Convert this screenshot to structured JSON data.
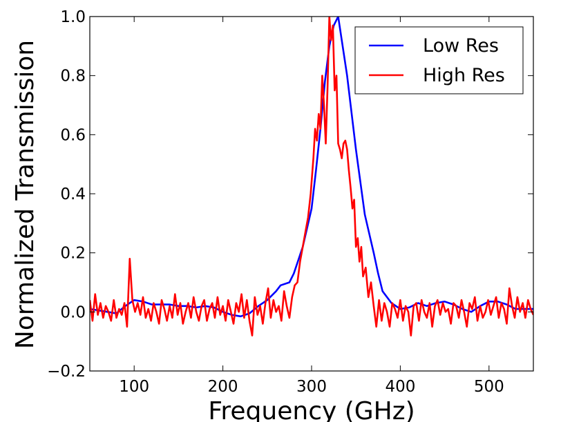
{
  "chart_data": {
    "type": "line",
    "title": "",
    "xlabel": "Frequency (GHz)",
    "ylabel": "Normalized Transmission",
    "xlim": [
      50,
      550
    ],
    "ylim": [
      -0.2,
      1.0
    ],
    "xticks": [
      100,
      200,
      300,
      400,
      500
    ],
    "yticks": [
      -0.2,
      0.0,
      0.2,
      0.4,
      0.6,
      0.8,
      1.0
    ],
    "ytick_labels": [
      "−0.2",
      "0.0",
      "0.2",
      "0.4",
      "0.6",
      "0.8",
      "1.0"
    ],
    "grid": false,
    "legend_position": "top-right",
    "series": [
      {
        "name": "Low Res",
        "color": "#0000ff",
        "x": [
          50,
          60,
          70,
          80,
          90,
          100,
          110,
          120,
          130,
          140,
          150,
          160,
          170,
          180,
          190,
          200,
          210,
          220,
          230,
          240,
          250,
          260,
          265,
          275,
          280,
          290,
          300,
          305,
          310,
          315,
          320,
          325,
          330,
          340,
          350,
          360,
          370,
          375,
          380,
          390,
          400,
          410,
          420,
          430,
          440,
          450,
          460,
          470,
          480,
          490,
          500,
          510,
          520,
          530,
          540,
          550
        ],
        "y": [
          0.01,
          0.005,
          0.0,
          -0.005,
          0.02,
          0.04,
          0.035,
          0.025,
          0.025,
          0.025,
          0.02,
          0.02,
          0.015,
          0.02,
          0.015,
          0.0,
          -0.01,
          -0.015,
          -0.005,
          0.02,
          0.04,
          0.07,
          0.09,
          0.1,
          0.13,
          0.22,
          0.35,
          0.48,
          0.62,
          0.78,
          0.9,
          0.97,
          1.0,
          0.8,
          0.55,
          0.33,
          0.2,
          0.13,
          0.07,
          0.03,
          0.01,
          0.015,
          0.03,
          0.02,
          0.03,
          0.035,
          0.025,
          0.01,
          0.0,
          0.02,
          0.035,
          0.035,
          0.025,
          0.01,
          0.01,
          0.01
        ]
      },
      {
        "name": "High Res",
        "color": "#ff0000",
        "x": [
          50,
          53,
          56,
          59,
          62,
          65,
          68,
          71,
          74,
          77,
          80,
          83,
          86,
          89,
          92,
          95,
          98,
          101,
          104,
          107,
          110,
          113,
          116,
          119,
          122,
          125,
          128,
          131,
          134,
          137,
          140,
          143,
          146,
          149,
          152,
          155,
          158,
          161,
          164,
          167,
          170,
          173,
          176,
          179,
          182,
          185,
          188,
          191,
          194,
          197,
          200,
          203,
          206,
          209,
          212,
          215,
          218,
          221,
          224,
          227,
          230,
          233,
          236,
          239,
          242,
          245,
          248,
          251,
          254,
          257,
          260,
          263,
          266,
          269,
          272,
          275,
          278,
          281,
          284,
          287,
          290,
          293,
          296,
          299,
          302,
          304,
          306,
          308,
          310,
          312,
          314,
          316,
          318,
          320,
          322,
          324,
          326,
          328,
          330,
          332,
          334,
          336,
          338,
          340,
          342,
          344,
          346,
          348,
          350,
          352,
          354,
          356,
          358,
          361,
          364,
          367,
          370,
          373,
          376,
          379,
          382,
          385,
          388,
          391,
          394,
          397,
          400,
          403,
          406,
          409,
          412,
          415,
          418,
          421,
          424,
          427,
          430,
          433,
          436,
          439,
          442,
          445,
          448,
          451,
          454,
          457,
          460,
          463,
          466,
          469,
          472,
          475,
          478,
          481,
          484,
          487,
          490,
          493,
          496,
          499,
          502,
          505,
          508,
          511,
          514,
          517,
          520,
          523,
          526,
          529,
          532,
          535,
          538,
          541,
          544,
          547,
          550
        ],
        "y": [
          0.04,
          -0.03,
          0.06,
          -0.01,
          0.03,
          -0.02,
          0.02,
          0.0,
          -0.03,
          0.04,
          -0.02,
          0.01,
          -0.01,
          0.03,
          -0.05,
          0.18,
          0.04,
          0.0,
          0.03,
          -0.01,
          0.05,
          -0.02,
          0.01,
          -0.03,
          0.03,
          0.0,
          -0.04,
          0.04,
          0.01,
          -0.03,
          0.02,
          -0.02,
          0.06,
          -0.01,
          0.03,
          -0.04,
          0.0,
          0.03,
          -0.02,
          0.05,
          0.0,
          -0.03,
          0.02,
          0.04,
          -0.03,
          0.01,
          0.03,
          -0.02,
          0.05,
          -0.01,
          0.02,
          -0.03,
          0.04,
          0.0,
          -0.04,
          0.03,
          0.0,
          0.06,
          -0.02,
          0.04,
          -0.03,
          -0.08,
          0.05,
          -0.01,
          0.02,
          -0.04,
          0.03,
          0.08,
          -0.02,
          0.04,
          0.0,
          0.02,
          -0.03,
          0.07,
          0.02,
          -0.02,
          0.05,
          0.09,
          0.1,
          0.17,
          0.22,
          0.27,
          0.32,
          0.4,
          0.52,
          0.62,
          0.58,
          0.67,
          0.62,
          0.8,
          0.7,
          0.57,
          0.76,
          1.0,
          0.92,
          0.97,
          0.75,
          0.8,
          0.57,
          0.55,
          0.52,
          0.57,
          0.58,
          0.55,
          0.48,
          0.42,
          0.35,
          0.38,
          0.22,
          0.25,
          0.17,
          0.22,
          0.12,
          0.15,
          0.05,
          0.1,
          0.02,
          -0.05,
          0.04,
          -0.03,
          0.03,
          0.0,
          -0.05,
          0.03,
          0.01,
          -0.02,
          0.04,
          -0.03,
          0.02,
          0.0,
          -0.08,
          0.02,
          0.03,
          -0.03,
          0.04,
          0.0,
          -0.02,
          0.03,
          -0.05,
          0.02,
          0.04,
          -0.01,
          0.03,
          0.0,
          0.01,
          -0.04,
          0.03,
          0.02,
          -0.02,
          0.04,
          0.0,
          -0.05,
          0.03,
          0.01,
          0.05,
          -0.03,
          0.02,
          -0.02,
          0.0,
          0.04,
          -0.01,
          0.02,
          0.05,
          -0.02,
          0.03,
          0.01,
          -0.04,
          0.08,
          0.02,
          -0.02,
          0.05,
          0.0,
          0.03,
          -0.02,
          0.04,
          0.01,
          -0.01
        ]
      }
    ]
  }
}
